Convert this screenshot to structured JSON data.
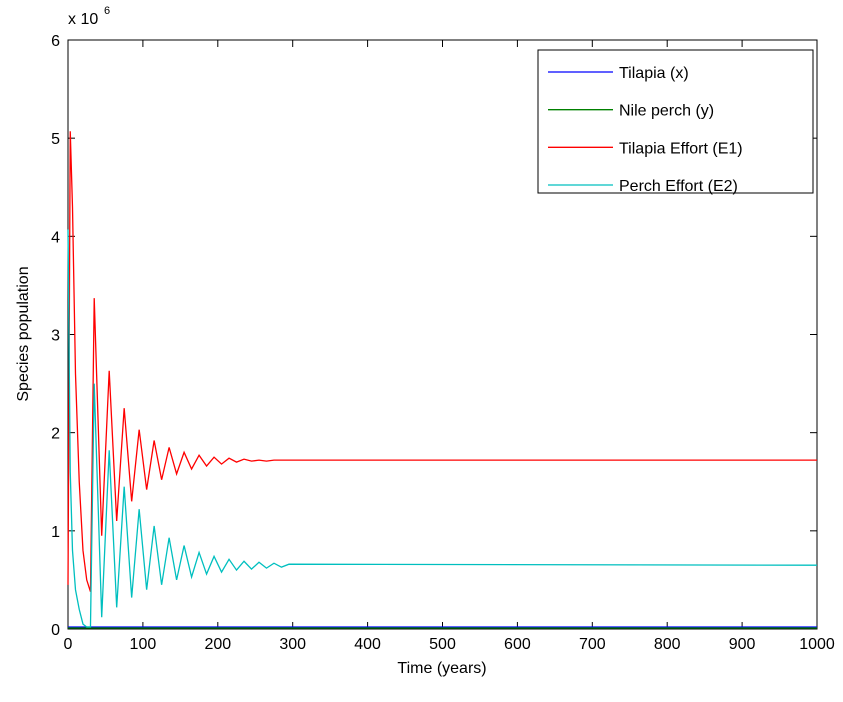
{
  "chart_data": {
    "type": "line",
    "x_label": "Time (years)",
    "y_label": "Species population",
    "y_multiplier": "x 10",
    "y_multiplier_exponent": "6",
    "x": [
      0,
      3,
      6,
      10,
      15,
      20,
      25,
      30,
      35,
      45,
      55,
      65,
      75,
      85,
      95,
      105,
      115,
      125,
      135,
      145,
      155,
      165,
      175,
      185,
      195,
      205,
      215,
      225,
      235,
      245,
      255,
      265,
      275,
      285,
      295,
      1000
    ],
    "series": [
      {
        "name": "Tilapia (x)",
        "color": "#0000ff",
        "values": [
          0.02,
          0.02,
          0.02,
          0.02,
          0.02,
          0.02,
          0.02,
          0.02,
          0.02,
          0.02,
          0.02,
          0.02,
          0.02,
          0.02,
          0.02,
          0.02,
          0.02,
          0.02,
          0.02,
          0.02,
          0.02,
          0.02,
          0.02,
          0.02,
          0.02,
          0.02,
          0.02,
          0.02,
          0.02,
          0.02,
          0.02,
          0.02,
          0.02,
          0.02,
          0.02,
          0.02
        ]
      },
      {
        "name": "Nile perch (y)",
        "color": "#008000",
        "values": [
          0.01,
          0.01,
          0.01,
          0.01,
          0.01,
          0.01,
          0.01,
          0.01,
          0.01,
          0.01,
          0.01,
          0.01,
          0.01,
          0.01,
          0.01,
          0.01,
          0.01,
          0.01,
          0.01,
          0.01,
          0.01,
          0.01,
          0.01,
          0.01,
          0.01,
          0.01,
          0.01,
          0.01,
          0.01,
          0.01,
          0.01,
          0.01,
          0.01,
          0.01,
          0.01,
          0.01
        ]
      },
      {
        "name": "Tilapia Effort (E1)",
        "color": "#ff0000",
        "values": [
          0.45,
          5.07,
          4.3,
          2.6,
          1.5,
          0.8,
          0.5,
          0.38,
          3.37,
          0.95,
          2.63,
          1.1,
          2.25,
          1.3,
          2.03,
          1.42,
          1.92,
          1.52,
          1.85,
          1.58,
          1.8,
          1.63,
          1.77,
          1.66,
          1.75,
          1.68,
          1.74,
          1.7,
          1.73,
          1.71,
          1.72,
          1.71,
          1.72,
          1.72,
          1.72,
          1.72
        ]
      },
      {
        "name": "Perch Effort (E2)",
        "color": "#00bfbf",
        "values": [
          4.07,
          1.6,
          0.8,
          0.4,
          0.2,
          0.05,
          0.02,
          0.02,
          2.5,
          0.12,
          1.82,
          0.22,
          1.45,
          0.32,
          1.22,
          0.4,
          1.05,
          0.45,
          0.93,
          0.5,
          0.85,
          0.53,
          0.78,
          0.56,
          0.74,
          0.58,
          0.71,
          0.6,
          0.69,
          0.61,
          0.68,
          0.62,
          0.67,
          0.63,
          0.66,
          0.65
        ]
      }
    ],
    "xlim": [
      0,
      1000
    ],
    "xticks": [
      0,
      100,
      200,
      300,
      400,
      500,
      600,
      700,
      800,
      900,
      1000
    ],
    "ylim": [
      0,
      6
    ],
    "yticks": [
      0,
      1,
      2,
      3,
      4,
      5,
      6
    ],
    "legend": "upper right"
  }
}
